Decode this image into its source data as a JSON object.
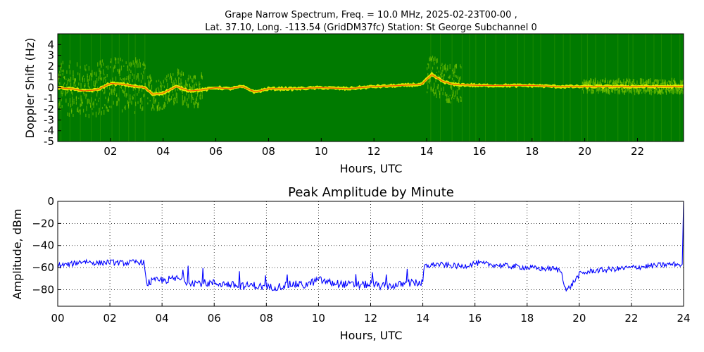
{
  "figure": {
    "title_line1": "Grape Narrow Spectrum, Freq. = 10.0 MHz, 2025-02-23T00-00 ,",
    "title_line2": "Lat.  37.10, Long. -113.54 (GridDM37fc) Station: St George Subchannel 0"
  },
  "colors": {
    "spectrum_background": "#007a00",
    "spectrum_noise": "#8fd400",
    "spectrum_signal": "#ffff00",
    "spectrum_peak": "#ff3300",
    "amplitude_line": "#0000ff",
    "grid": "#000000"
  },
  "chart_data": [
    {
      "type": "heatmap",
      "title": "",
      "xlabel": "Hours, UTC",
      "ylabel": "Doppler Shift (Hz)",
      "xlim": [
        0,
        23.75
      ],
      "ylim": [
        -5,
        5
      ],
      "x_ticks": [
        2,
        4,
        6,
        8,
        10,
        12,
        14,
        16,
        18,
        20,
        22
      ],
      "x_tick_labels": [
        "02",
        "04",
        "06",
        "08",
        "10",
        "12",
        "14",
        "16",
        "18",
        "20",
        "22"
      ],
      "y_ticks": [
        -5,
        -4,
        -3,
        -2,
        -1,
        0,
        1,
        2,
        3,
        4
      ],
      "y_tick_labels": [
        "-5",
        "-4",
        "-3",
        "-2",
        "-1",
        "0",
        "1",
        "2",
        "3",
        "4"
      ],
      "grid": false,
      "doppler_trace": {
        "hours": [
          0,
          0.5,
          1,
          1.5,
          2,
          2.5,
          3,
          3.3,
          3.6,
          4,
          4.5,
          5,
          5.5,
          6,
          6.5,
          7,
          7.5,
          8,
          9,
          10,
          11,
          12,
          13,
          13.8,
          14.2,
          14.6,
          15,
          16,
          17,
          18,
          19,
          19.2,
          19.5,
          20,
          21,
          22,
          23,
          23.75
        ],
        "doppler_hz": [
          0,
          -0.1,
          -0.3,
          -0.2,
          0.4,
          0.3,
          0.1,
          0,
          -0.6,
          -0.5,
          0.1,
          -0.3,
          -0.2,
          0,
          -0.1,
          0.1,
          -0.4,
          -0.1,
          -0.1,
          0,
          -0.1,
          0.1,
          0.2,
          0.3,
          1.2,
          0.6,
          0.3,
          0.2,
          0.2,
          0.2,
          0.1,
          0.1,
          0.1,
          0.1,
          0.1,
          0.1,
          0.1,
          0.1
        ]
      },
      "spread_events": [
        {
          "start_hour": 0,
          "end_hour": 3.3,
          "spread_hz": 2.5
        },
        {
          "start_hour": 3.4,
          "end_hour": 5.5,
          "spread_hz": 1.5
        },
        {
          "start_hour": 14,
          "end_hour": 15.3,
          "spread_hz": 1.8
        },
        {
          "start_hour": 19.9,
          "end_hour": 23.75,
          "spread_hz": 0.6
        }
      ]
    },
    {
      "type": "line",
      "title": "Peak Amplitude by Minute",
      "xlabel": "Hours, UTC",
      "ylabel": "Amplitude, dBm",
      "xlim": [
        0,
        24
      ],
      "ylim": [
        -95,
        0
      ],
      "x_ticks": [
        0,
        2,
        4,
        6,
        8,
        10,
        12,
        14,
        16,
        18,
        20,
        22,
        24
      ],
      "x_tick_labels": [
        "00",
        "02",
        "04",
        "06",
        "08",
        "10",
        "12",
        "14",
        "16",
        "18",
        "20",
        "22",
        "24"
      ],
      "y_ticks": [
        -80,
        -60,
        -40,
        -20,
        0
      ],
      "y_tick_labels": [
        "−80",
        "−60",
        "−40",
        "−20",
        "0"
      ],
      "grid": true,
      "series": [
        {
          "x": [
            0,
            0.5,
            1,
            1.5,
            2,
            2.5,
            3,
            3.3,
            3.4,
            3.8,
            4.2,
            4.6,
            5,
            5.5,
            6,
            6.5,
            7,
            7.5,
            8,
            8.5,
            9,
            9.5,
            10,
            10.5,
            11,
            11.5,
            12,
            12.5,
            13,
            13.5,
            14,
            14.05,
            14.5,
            15,
            15.5,
            16,
            16.5,
            17,
            17.5,
            18,
            18.5,
            19,
            19.3,
            19.5,
            19.7,
            20,
            20.5,
            21,
            21.5,
            22,
            22.5,
            23,
            23.5,
            23.9,
            24
          ],
          "y": [
            -58,
            -57,
            -54,
            -56,
            -55,
            -56,
            -55,
            -55,
            -74,
            -72,
            -71,
            -70,
            -73,
            -74,
            -74,
            -75,
            -77,
            -76,
            -78,
            -77,
            -75,
            -76,
            -71,
            -74,
            -75,
            -76,
            -75,
            -77,
            -76,
            -74,
            -74,
            -59,
            -57,
            -58,
            -59,
            -56,
            -57,
            -58,
            -59,
            -60,
            -61,
            -61,
            -63,
            -81,
            -76,
            -66,
            -63,
            -62,
            -61,
            -60,
            -59,
            -58,
            -57,
            -57,
            0
          ]
        }
      ]
    }
  ]
}
